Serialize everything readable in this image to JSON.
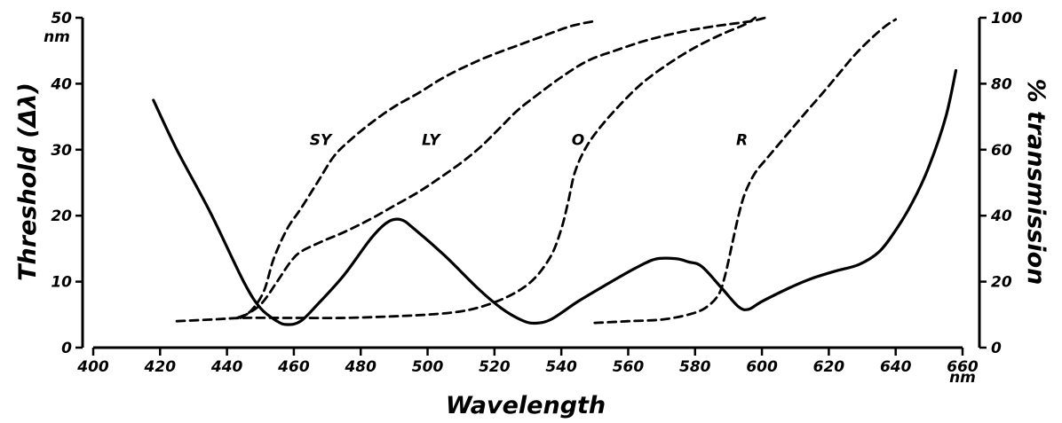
{
  "chart_data": {
    "type": "line",
    "title": "",
    "xlabel": "Wavelength",
    "x_unit": "nm",
    "ylabel_left": "Threshold (Δλ)",
    "y_left_unit": "nm",
    "ylabel_right": "% transmission",
    "xlim": [
      400,
      660
    ],
    "x_ticks": [
      400,
      420,
      440,
      460,
      480,
      500,
      520,
      540,
      560,
      580,
      600,
      620,
      640,
      660
    ],
    "ylim_left": [
      0,
      50
    ],
    "y_left_ticks": [
      0,
      10,
      20,
      30,
      40,
      50
    ],
    "ylim_right": [
      0,
      100
    ],
    "y_right_ticks": [
      0,
      20,
      40,
      60,
      80,
      100
    ],
    "grid": false,
    "legend": "none",
    "series": [
      {
        "axis": "left",
        "style": "solid",
        "points": [
          [
            418,
            37.5
          ],
          [
            425,
            30
          ],
          [
            435,
            20.5
          ],
          [
            445,
            10
          ],
          [
            450,
            6
          ],
          [
            455,
            4
          ],
          [
            458,
            3.5
          ],
          [
            462,
            4
          ],
          [
            467,
            6.5
          ],
          [
            475,
            11
          ],
          [
            483,
            16.5
          ],
          [
            488,
            19
          ],
          [
            492,
            19.4
          ],
          [
            496,
            18
          ],
          [
            505,
            14
          ],
          [
            515,
            9
          ],
          [
            522,
            6
          ],
          [
            528,
            4.2
          ],
          [
            532,
            3.7
          ],
          [
            537,
            4.3
          ],
          [
            545,
            7
          ],
          [
            555,
            10
          ],
          [
            562,
            12
          ],
          [
            568,
            13.4
          ],
          [
            574,
            13.5
          ],
          [
            578,
            13
          ],
          [
            582,
            12.3
          ],
          [
            588,
            9
          ],
          [
            593,
            6.2
          ],
          [
            596,
            5.8
          ],
          [
            600,
            7
          ],
          [
            608,
            9
          ],
          [
            615,
            10.5
          ],
          [
            622,
            11.6
          ],
          [
            629,
            12.6
          ],
          [
            635,
            14.5
          ],
          [
            640,
            17.8
          ],
          [
            645,
            22
          ],
          [
            650,
            27.5
          ],
          [
            655,
            35
          ],
          [
            658,
            42
          ]
        ]
      },
      {
        "name": "SY",
        "axis": "right",
        "style": "dashed",
        "points": [
          [
            443,
            9
          ],
          [
            447,
            11
          ],
          [
            451,
            17
          ],
          [
            454,
            27
          ],
          [
            458,
            36
          ],
          [
            462,
            42
          ],
          [
            467,
            50
          ],
          [
            472,
            58
          ],
          [
            477,
            63
          ],
          [
            483,
            68
          ],
          [
            490,
            73
          ],
          [
            497,
            77
          ],
          [
            505,
            82
          ],
          [
            513,
            86
          ],
          [
            520,
            89
          ],
          [
            528,
            92
          ],
          [
            536,
            95
          ],
          [
            543,
            97.5
          ],
          [
            550,
            99
          ]
        ]
      },
      {
        "name": "LY",
        "axis": "right",
        "style": "dashed",
        "points": [
          [
            444,
            9
          ],
          [
            450,
            13
          ],
          [
            455,
            20
          ],
          [
            459,
            26
          ],
          [
            462,
            29
          ],
          [
            468,
            32
          ],
          [
            475,
            35
          ],
          [
            483,
            39
          ],
          [
            490,
            43
          ],
          [
            497,
            47
          ],
          [
            503,
            51
          ],
          [
            510,
            56
          ],
          [
            516,
            61
          ],
          [
            522,
            67
          ],
          [
            527,
            72
          ],
          [
            532,
            76
          ],
          [
            540,
            82
          ],
          [
            548,
            87
          ],
          [
            556,
            90
          ],
          [
            565,
            93
          ],
          [
            575,
            95.5
          ],
          [
            583,
            97
          ],
          [
            590,
            98
          ],
          [
            597,
            99
          ],
          [
            601,
            100
          ]
        ]
      },
      {
        "name": "O",
        "axis": "right",
        "style": "dashed",
        "points": [
          [
            425,
            8
          ],
          [
            435,
            8.5
          ],
          [
            445,
            9
          ],
          [
            460,
            9
          ],
          [
            475,
            9
          ],
          [
            490,
            9.5
          ],
          [
            500,
            10
          ],
          [
            510,
            11
          ],
          [
            518,
            13
          ],
          [
            526,
            16.5
          ],
          [
            532,
            21
          ],
          [
            537,
            28
          ],
          [
            540,
            36
          ],
          [
            542,
            44
          ],
          [
            544,
            53
          ],
          [
            547,
            60
          ],
          [
            551,
            66
          ],
          [
            557,
            73
          ],
          [
            564,
            80
          ],
          [
            572,
            86
          ],
          [
            580,
            91
          ],
          [
            588,
            95
          ],
          [
            595,
            98
          ],
          [
            598,
            100
          ]
        ]
      },
      {
        "name": "R",
        "axis": "right",
        "style": "dashed",
        "points": [
          [
            550,
            7.5
          ],
          [
            560,
            8
          ],
          [
            570,
            8.5
          ],
          [
            578,
            10
          ],
          [
            583,
            12
          ],
          [
            587,
            16
          ],
          [
            589,
            22
          ],
          [
            591,
            31
          ],
          [
            593,
            40
          ],
          [
            595,
            47
          ],
          [
            598,
            53
          ],
          [
            602,
            58
          ],
          [
            607,
            64
          ],
          [
            612,
            70
          ],
          [
            618,
            77
          ],
          [
            623,
            83
          ],
          [
            628,
            89
          ],
          [
            633,
            94
          ],
          [
            637,
            97.5
          ],
          [
            640,
            99.5
          ]
        ]
      }
    ],
    "annotations": [
      {
        "text": "SY",
        "x": 468,
        "y_right": 63
      },
      {
        "text": "LY",
        "x": 501,
        "y_right": 63
      },
      {
        "text": "O",
        "x": 545,
        "y_right": 63
      },
      {
        "text": "R",
        "x": 594,
        "y_right": 63
      }
    ]
  }
}
